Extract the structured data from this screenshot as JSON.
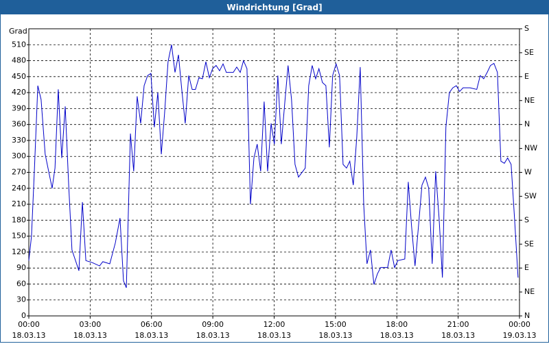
{
  "chart_data": {
    "type": "line",
    "title": "Windrichtung [Grad]",
    "y_label": "Grad",
    "x": [
      0,
      0.13,
      0.27,
      0.44,
      0.6,
      0.8,
      1.14,
      1.28,
      1.44,
      1.61,
      1.78,
      1.95,
      2.11,
      2.45,
      2.62,
      2.79,
      3.12,
      3.46,
      3.62,
      3.96,
      4.23,
      4.46,
      4.63,
      4.77,
      4.97,
      5.13,
      5.3,
      5.47,
      5.64,
      5.81,
      5.97,
      6.14,
      6.31,
      6.48,
      6.64,
      6.81,
      6.98,
      7.15,
      7.32,
      7.48,
      7.65,
      7.82,
      7.99,
      8.15,
      8.32,
      8.49,
      8.66,
      8.83,
      8.99,
      9.16,
      9.33,
      9.5,
      9.66,
      10.0,
      10.17,
      10.34,
      10.5,
      10.67,
      10.84,
      11.01,
      11.17,
      11.34,
      11.51,
      11.68,
      11.85,
      12.01,
      12.18,
      12.35,
      12.52,
      12.68,
      12.85,
      13.02,
      13.19,
      13.52,
      13.69,
      13.86,
      14.03,
      14.19,
      14.36,
      14.53,
      14.7,
      14.86,
      15.03,
      15.2,
      15.37,
      15.54,
      15.7,
      15.87,
      16.04,
      16.21,
      16.38,
      16.54,
      16.71,
      16.88,
      17.05,
      17.21,
      17.55,
      17.72,
      17.89,
      18.05,
      18.39,
      18.56,
      18.72,
      18.89,
      19.06,
      19.23,
      19.4,
      19.56,
      19.73,
      19.9,
      20.07,
      20.23,
      20.4,
      20.57,
      20.74,
      20.91,
      21.07,
      21.24,
      21.58,
      21.91,
      22.08,
      22.25,
      22.42,
      22.58,
      22.75,
      22.92,
      23.09,
      23.26,
      23.42,
      23.59,
      23.76,
      23.93
    ],
    "series": [
      {
        "name": "Windrichtung",
        "color": "#0000c8",
        "values": [
          104,
          150,
          272,
          433,
          407,
          304,
          240,
          278,
          426,
          297,
          394,
          246,
          124,
          85,
          214,
          104,
          100,
          94,
          102,
          98,
          137,
          184,
          66,
          53,
          343,
          272,
          413,
          362,
          433,
          452,
          456,
          355,
          420,
          304,
          381,
          478,
          510,
          458,
          491,
          426,
          362,
          452,
          426,
          426,
          448,
          446,
          478,
          448,
          465,
          471,
          461,
          474,
          458,
          458,
          468,
          458,
          480,
          465,
          210,
          297,
          323,
          272,
          403,
          272,
          362,
          323,
          452,
          323,
          401,
          471,
          407,
          285,
          261,
          278,
          433,
          471,
          446,
          465,
          439,
          433,
          317,
          452,
          474,
          452,
          285,
          278,
          291,
          246,
          336,
          468,
          210,
          98,
          124,
          59,
          79,
          91,
          91,
          124,
          91,
          104,
          107,
          252,
          169,
          94,
          169,
          246,
          261,
          240,
          98,
          272,
          182,
          72,
          355,
          420,
          429,
          433,
          422,
          429,
          429,
          426,
          452,
          446,
          458,
          471,
          475,
          458,
          291,
          287,
          297,
          285,
          182,
          72
        ]
      }
    ],
    "xlim": [
      0,
      24
    ],
    "xticks": [
      {
        "value": 0,
        "label": "00:00"
      },
      {
        "value": 3,
        "label": "03:00"
      },
      {
        "value": 6,
        "label": "06:00"
      },
      {
        "value": 9,
        "label": "09:00"
      },
      {
        "value": 12,
        "label": "12:00"
      },
      {
        "value": 15,
        "label": "15:00"
      },
      {
        "value": 18,
        "label": "18:00"
      },
      {
        "value": 21,
        "label": "21:00"
      },
      {
        "value": 24,
        "label": "00:00"
      }
    ],
    "xtick_dates": [
      "18.03.13",
      "18.03.13",
      "18.03.13",
      "18.03.13",
      "18.03.13",
      "18.03.13",
      "18.03.13",
      "18.03.13",
      "19.03.13"
    ],
    "ylim": [
      0,
      540
    ],
    "yticks": [
      0,
      30,
      60,
      90,
      120,
      150,
      180,
      210,
      240,
      270,
      300,
      330,
      360,
      390,
      420,
      450,
      480,
      510
    ],
    "y2lim": [
      0,
      540
    ],
    "y2ticks": [
      {
        "value": 0,
        "label": "N"
      },
      {
        "value": 45,
        "label": "NE"
      },
      {
        "value": 90,
        "label": "E"
      },
      {
        "value": 135,
        "label": "SE"
      },
      {
        "value": 180,
        "label": "S"
      },
      {
        "value": 225,
        "label": "SW"
      },
      {
        "value": 270,
        "label": "W"
      },
      {
        "value": 315,
        "label": "NW"
      },
      {
        "value": 360,
        "label": "N"
      },
      {
        "value": 405,
        "label": "NE"
      },
      {
        "value": 450,
        "label": "E"
      },
      {
        "value": 495,
        "label": "SE"
      },
      {
        "value": 540,
        "label": "S"
      }
    ],
    "grid": true
  }
}
